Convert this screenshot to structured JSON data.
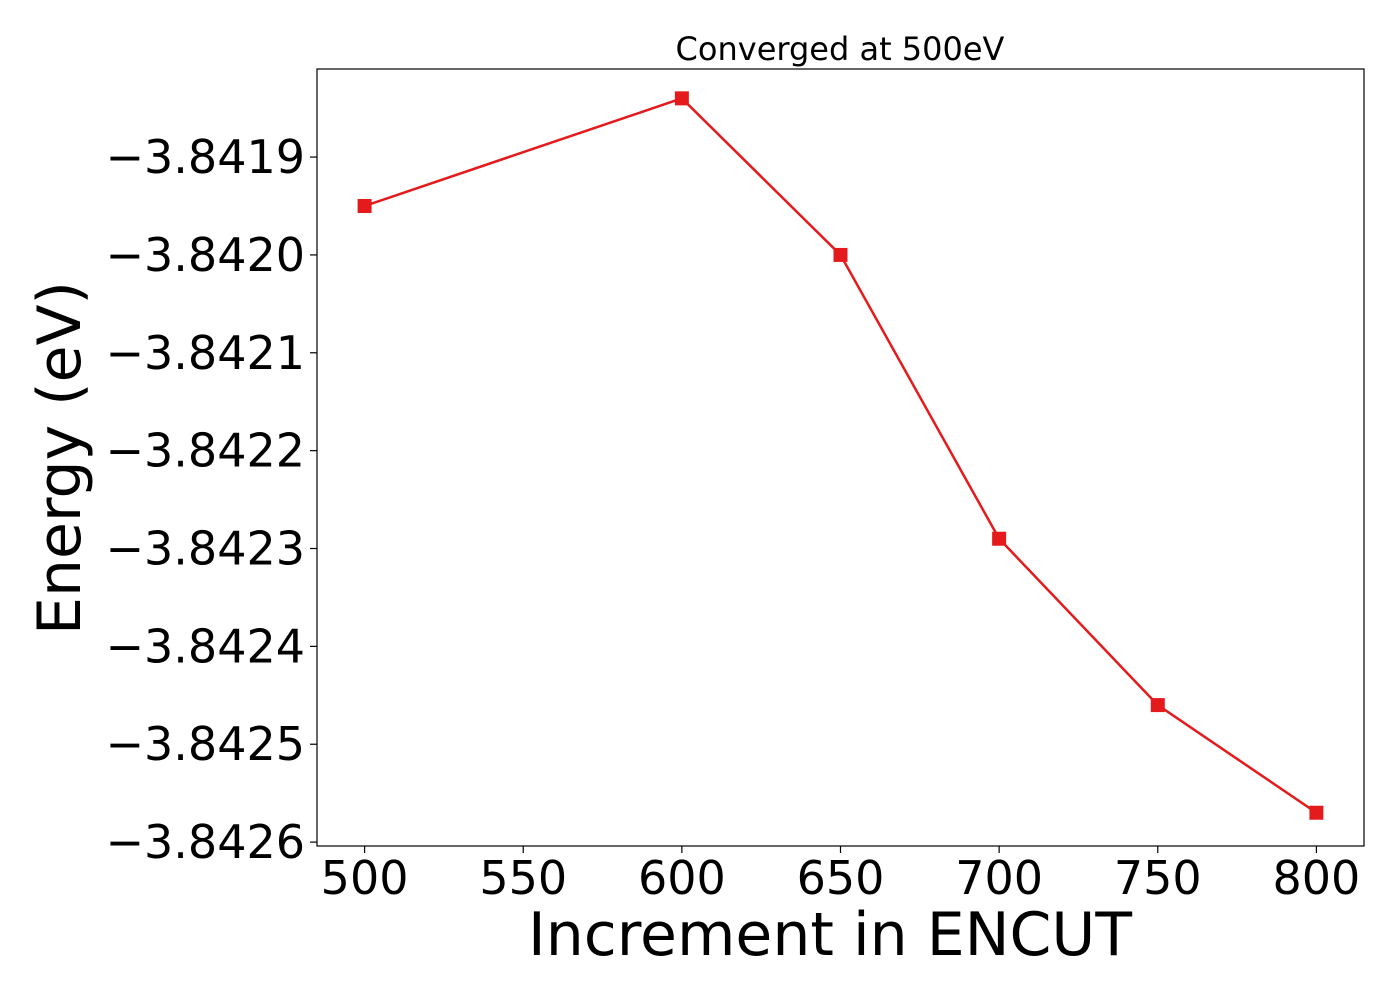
{
  "chart_data": {
    "type": "line",
    "title": "Converged at 500eV",
    "xlabel": "Increment in ENCUT",
    "ylabel": "Energy (eV)",
    "x": [
      500,
      600,
      650,
      700,
      750,
      800
    ],
    "series": [
      {
        "values": [
          -3.84195,
          -3.84184,
          -3.842,
          -3.84229,
          -3.84246,
          -3.84257
        ],
        "color": "#e41a1c",
        "marker": "square"
      }
    ],
    "xlim": [
      485,
      815
    ],
    "ylim": [
      -3.842604,
      -3.84181
    ],
    "xticks": [
      500,
      550,
      600,
      650,
      700,
      750,
      800
    ],
    "xtick_labels": [
      "500",
      "550",
      "600",
      "650",
      "700",
      "750",
      "800"
    ],
    "yticks": [
      -3.8419,
      -3.842,
      -3.8421,
      -3.8422,
      -3.8423,
      -3.8424,
      -3.8425,
      -3.8426
    ],
    "ytick_labels": [
      "−3.8419",
      "−3.8420",
      "−3.8421",
      "−3.8422",
      "−3.8423",
      "−3.8424",
      "−3.8425",
      "−3.8426"
    ],
    "grid": false,
    "legend": "none"
  }
}
